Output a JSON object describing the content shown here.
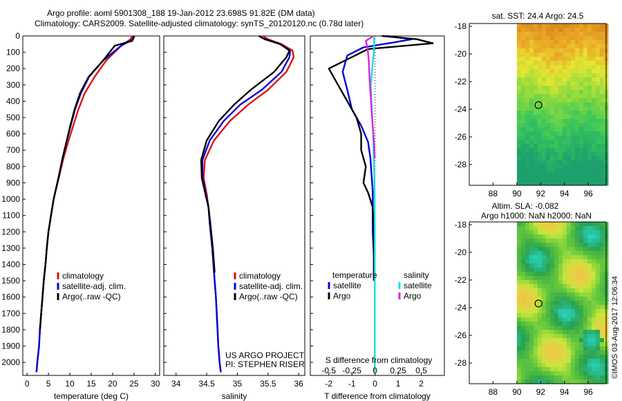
{
  "header": {
    "line1": "Argo profile: aoml 5901308_188 19-Jan-2012 23.698S 91.82E (DM data)",
    "line2": "Climatology: CARS2009. Satellite-adjusted climatology: synTS_20120120.nc (0.78d later)"
  },
  "colors": {
    "climatology": "#e01010",
    "satellite": "#0000dd",
    "argo": "#000000",
    "argo_salinity_diff": "#e020e0",
    "satellite_salinity_diff": "#10e0e0"
  },
  "chart_data": [
    {
      "type": "line",
      "name": "temperature-profile",
      "xlabel": "temperature (deg C)",
      "ylabel": "",
      "xlim": [
        -1,
        31
      ],
      "ylim": [
        2080,
        0
      ],
      "xticks": [
        0,
        5,
        10,
        15,
        20,
        25,
        30
      ],
      "xtick_labels": [
        "0",
        "5",
        "10",
        "15",
        "20",
        "25",
        "30"
      ],
      "yticks": [
        0,
        100,
        200,
        300,
        400,
        500,
        600,
        700,
        800,
        900,
        1000,
        1100,
        1200,
        1300,
        1400,
        1500,
        1600,
        1700,
        1800,
        1900,
        2000
      ],
      "ytick_labels": [
        "0",
        "100",
        "200",
        "300",
        "400",
        "500",
        "600",
        "700",
        "800",
        "900",
        "1000",
        "1100",
        "1200",
        "1300",
        "1400",
        "1500",
        "1600",
        "1700",
        "1800",
        "1900",
        "2000"
      ],
      "legend": [
        "climatology",
        "satellite-adj. clim.",
        "Argo(..raw -QC)"
      ],
      "legend_location": "lower-left",
      "series": [
        {
          "name": "climatology",
          "color_key": "climatology",
          "x": [
            24.6,
            24.2,
            22.0,
            18.5,
            15.8,
            13.5,
            12.0,
            10.8,
            9.6,
            8.5,
            7.6,
            6.2,
            5.6,
            5.0,
            4.6,
            4.3,
            3.9,
            3.6,
            3.3,
            3.0,
            2.8,
            2.6,
            2.4,
            2.3,
            2.2
          ],
          "y": [
            0,
            20,
            60,
            150,
            250,
            350,
            450,
            550,
            650,
            750,
            850,
            1000,
            1100,
            1200,
            1300,
            1400,
            1500,
            1600,
            1700,
            1800,
            1900,
            1950,
            2000,
            2030,
            2060
          ]
        },
        {
          "name": "satellite-adj. clim.",
          "color_key": "satellite",
          "x": [
            25.1,
            24.8,
            22.0,
            17.8,
            14.5,
            12.6,
            11.2,
            10.2,
            9.2,
            8.3,
            7.5,
            6.2,
            5.6,
            5.0,
            4.6,
            4.3,
            3.9,
            3.6,
            3.3,
            3.0,
            2.8,
            2.6,
            2.4,
            2.3,
            2.2
          ],
          "y": [
            0,
            20,
            60,
            150,
            250,
            350,
            450,
            550,
            650,
            750,
            850,
            1000,
            1100,
            1200,
            1300,
            1400,
            1500,
            1600,
            1700,
            1800,
            1900,
            1950,
            2000,
            2030,
            2060
          ]
        },
        {
          "name": "Argo(..raw -QC)",
          "color_key": "argo",
          "x": [
            24.9,
            24.6,
            20.5,
            17.8,
            14.4,
            12.4,
            11.1,
            10.1,
            9.2,
            8.3,
            7.5,
            6.2,
            5.6,
            5.0,
            4.6,
            4.3,
            3.9,
            3.6,
            3.3,
            3.0
          ],
          "y": [
            0,
            30,
            60,
            150,
            250,
            350,
            450,
            550,
            650,
            750,
            850,
            1000,
            1100,
            1200,
            1300,
            1400,
            1500,
            1600,
            1700,
            1800
          ]
        }
      ]
    },
    {
      "type": "line",
      "name": "salinity-profile",
      "xlabel": "salinity",
      "xlim": [
        33.8,
        36.1
      ],
      "ylim": [
        2080,
        0
      ],
      "xticks": [
        34,
        34.5,
        35,
        35.5,
        36
      ],
      "xtick_labels": [
        "34",
        "34.5",
        "35",
        "35.5",
        "36"
      ],
      "legend": [
        "climatology",
        "satellite-adj. clim.",
        "Argo(..raw -QC)"
      ],
      "legend_location": "lower-left",
      "annotations": [
        "US ARGO PROJECT",
        "PI: STEPHEN RISER"
      ],
      "series": [
        {
          "name": "climatology",
          "color_key": "climatology",
          "x": [
            35.42,
            35.5,
            35.72,
            35.9,
            35.92,
            35.8,
            35.5,
            35.18,
            34.88,
            34.62,
            34.47,
            34.45,
            34.5,
            34.53,
            34.55,
            34.59,
            34.62,
            34.65,
            34.67,
            34.69,
            34.71,
            34.72,
            34.73
          ],
          "y": [
            0,
            20,
            50,
            90,
            130,
            220,
            330,
            420,
            520,
            640,
            760,
            870,
            970,
            1050,
            1150,
            1300,
            1450,
            1600,
            1750,
            1900,
            2000,
            2030,
            2060
          ]
        },
        {
          "name": "satellite-adj. clim.",
          "color_key": "satellite",
          "x": [
            35.35,
            35.45,
            35.7,
            35.86,
            35.85,
            35.72,
            35.4,
            35.05,
            34.78,
            34.55,
            34.43,
            34.43,
            34.49,
            34.53,
            34.55,
            34.59,
            34.62,
            34.65,
            34.67,
            34.69,
            34.71,
            34.72,
            34.73
          ],
          "y": [
            0,
            20,
            50,
            90,
            130,
            220,
            330,
            420,
            520,
            640,
            760,
            870,
            970,
            1050,
            1150,
            1300,
            1450,
            1600,
            1750,
            1900,
            2000,
            2030,
            2060
          ]
        },
        {
          "name": "Argo(..raw -QC)",
          "color_key": "argo",
          "x": [
            35.35,
            35.45,
            35.7,
            35.85,
            35.8,
            35.6,
            35.22,
            34.95,
            34.7,
            34.5,
            34.41,
            34.42,
            34.48,
            34.53,
            34.56,
            34.6,
            34.63
          ],
          "y": [
            0,
            20,
            50,
            90,
            130,
            220,
            330,
            420,
            520,
            640,
            760,
            870,
            970,
            1050,
            1150,
            1300,
            1450
          ]
        }
      ]
    },
    {
      "type": "line",
      "name": "difference-profile",
      "xlabel": "T difference from climatology",
      "xlabel_top": "S difference from climatology",
      "xlim": [
        -2.8,
        3.0
      ],
      "ylim": [
        2080,
        0
      ],
      "xticks": [
        -2,
        -1,
        0,
        1,
        2
      ],
      "xtick_labels": [
        "-2",
        "-1",
        "0",
        "1",
        "2"
      ],
      "s_ticks": [
        -0.5,
        -0.25,
        0,
        0.25,
        0.5
      ],
      "s_tick_labels": [
        "-0.5",
        "-0.25",
        "0",
        "0.25",
        "0.5"
      ],
      "zero_line": "dotted",
      "legend_temperature_title": "temperature",
      "legend_salinity_title": "salinity",
      "legend": [
        "satellite",
        "Argo",
        "satellite",
        "Argo"
      ],
      "series": [
        {
          "name": "temperature satellite",
          "color_key": "satellite",
          "x": [
            0.5,
            1.6,
            0.8,
            -0.5,
            -1.2,
            -1.4,
            -1.2,
            -1.0,
            -0.6,
            -0.3,
            -0.2,
            -0.15,
            -0.1,
            -0.1,
            -0.1,
            -0.05,
            -0.05,
            -0.05
          ],
          "y": [
            0,
            20,
            40,
            70,
            120,
            220,
            330,
            450,
            550,
            650,
            750,
            850,
            950,
            1050,
            1200,
            1350,
            1450,
            1500
          ]
        },
        {
          "name": "temperature Argo",
          "color_key": "argo",
          "x": [
            0.3,
            1.8,
            2.5,
            -0.3,
            -2.0,
            -1.6,
            -1.2,
            -0.8,
            -0.6,
            -0.6,
            -0.4,
            -0.5,
            -0.3,
            -0.1,
            -0.05,
            -0.05,
            -0.05,
            -0.05
          ],
          "y": [
            0,
            20,
            45,
            80,
            200,
            300,
            400,
            500,
            600,
            700,
            800,
            900,
            960,
            1050,
            1200,
            1350,
            1450,
            1500
          ]
        },
        {
          "name": "salinity satellite",
          "color_key": "satellite_salinity_diff",
          "x": [
            -0.05,
            -0.03,
            -0.05,
            -0.12,
            -0.18,
            -0.16,
            -0.12,
            -0.08,
            -0.06,
            -0.04,
            -0.03,
            -0.02,
            -0.01,
            -0.01,
            -0.01,
            -0.01,
            -0.01
          ],
          "y": [
            0,
            50,
            100,
            200,
            300,
            400,
            500,
            600,
            700,
            800,
            900,
            1000,
            1200,
            1400,
            1600,
            1800,
            2060
          ]
        },
        {
          "name": "salinity Argo",
          "color_key": "argo_salinity_diff",
          "x": [
            -0.07,
            -0.4,
            -0.32,
            -0.27,
            -0.24,
            -0.2,
            -0.15,
            -0.1,
            -0.05,
            -0.01
          ],
          "y": [
            0,
            30,
            80,
            150,
            250,
            350,
            450,
            550,
            650,
            750
          ]
        }
      ]
    },
    {
      "type": "heatmap",
      "name": "sst-map",
      "title": "sat. SST: 24.4  Argo: 24.5",
      "xlim": [
        86,
        97.5
      ],
      "ylim": [
        -29.5,
        -17.8
      ],
      "xticks": [
        88,
        90,
        92,
        94,
        96
      ],
      "xtick_labels": [
        "88",
        "90",
        "92",
        "94",
        "96"
      ],
      "yticks": [
        -18,
        -20,
        -22,
        -24,
        -26,
        -28
      ],
      "ytick_labels": [
        "-18",
        "-20",
        "-22",
        "-24",
        "-26",
        "-28"
      ],
      "data_lon_min": 90,
      "profile_marker": {
        "lon": 91.82,
        "lat": -23.698
      }
    },
    {
      "type": "heatmap",
      "name": "sla-map",
      "title": "Altim. SLA: -0.082",
      "subtitle": "Argo h1000: NaN h2000: NaN",
      "xlim": [
        86,
        97.5
      ],
      "ylim": [
        -29.5,
        -17.8
      ],
      "xticks": [
        88,
        90,
        92,
        94,
        96
      ],
      "xtick_labels": [
        "88",
        "90",
        "92",
        "94",
        "96"
      ],
      "yticks": [
        -18,
        -20,
        -22,
        -24,
        -26,
        -28
      ],
      "ytick_labels": [
        "-18",
        "-20",
        "-22",
        "-24",
        "-26",
        "-28"
      ],
      "data_lon_min": 90,
      "profile_marker": {
        "lon": 91.82,
        "lat": -23.698
      }
    }
  ],
  "footer": {
    "credit": "©IMOS 03-Aug-2017 12:06:34"
  }
}
